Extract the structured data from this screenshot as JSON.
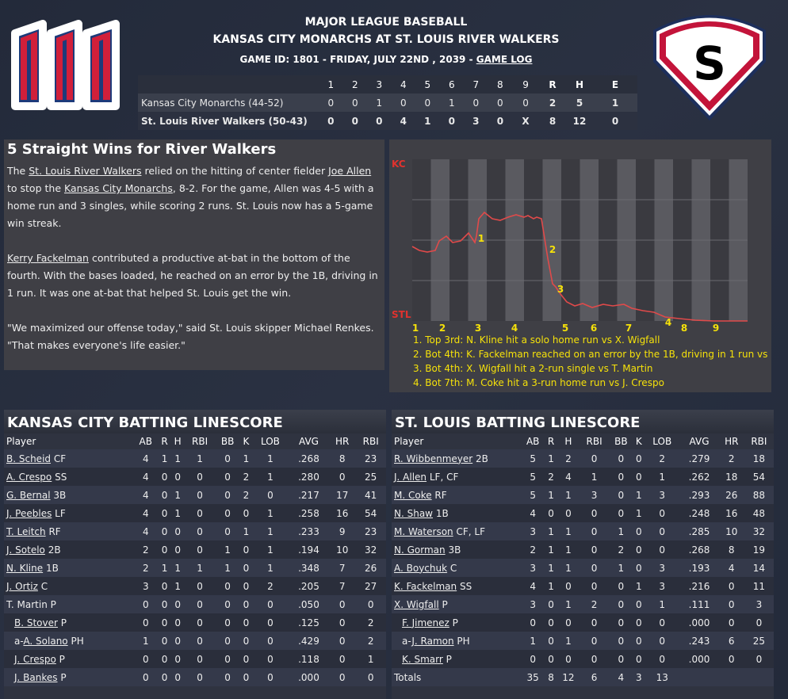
{
  "header": {
    "league": "MAJOR LEAGUE BASEBALL",
    "matchup": "KANSAS CITY MONARCHS AT ST. LOUIS RIVER WALKERS",
    "game_id_text": "GAME ID: 1801 - FRIDAY, JULY 22ND , 2039 - ",
    "game_log_link": "GAME LOG",
    "away_logo_letter": "M",
    "home_logo_letter": "S"
  },
  "colors": {
    "kc_red": "#d11f3a",
    "kc_navy": "#1d3a7a",
    "stl_red": "#c3143a",
    "wp_line": "#e04a4a",
    "legend": "#f5e10a"
  },
  "linescore": {
    "innings": [
      "1",
      "2",
      "3",
      "4",
      "5",
      "6",
      "7",
      "8",
      "9"
    ],
    "rhe": [
      "R",
      "H",
      "E"
    ],
    "away": {
      "team": "Kansas City Monarchs (44-52)",
      "innings": [
        "0",
        "0",
        "1",
        "0",
        "0",
        "1",
        "0",
        "0",
        "0"
      ],
      "r": "2",
      "h": "5",
      "e": "1"
    },
    "home": {
      "team": "St. Louis River Walkers (50-43)",
      "innings": [
        "0",
        "0",
        "0",
        "4",
        "1",
        "0",
        "3",
        "0",
        "X"
      ],
      "r": "8",
      "h": "12",
      "e": "0"
    }
  },
  "recap": {
    "title": "5 Straight Wins for River Walkers",
    "p1": {
      "a": "The ",
      "l1": "St. Louis River Walkers",
      "b": " relied on the hitting of center fielder ",
      "l2": "Joe Allen",
      "c": " to stop the ",
      "l3": "Kansas City Monarchs",
      "d": ", 8-2. For the game, Allen was 4-5 with a home run and 3 singles, while scoring 2 runs. St. Louis now has a 5-game win streak."
    },
    "p2": {
      "l1": "Kerry Fackelman",
      "a": " contributed a productive at-bat in the bottom of the fourth. With the bases loaded, he reached on an error by the 1B, driving in 1 run. It was one at-bat that helped St. Louis get the win."
    },
    "p3": "\"We maximized our offense today,\" said St. Louis skipper Michael Renkes. \"That makes everyone's life easier.\""
  },
  "winprob": {
    "top_label": "KC",
    "bottom_label": "STL",
    "innings": [
      "1",
      "2",
      "3",
      "4",
      "5",
      "6",
      "7",
      "8",
      "9"
    ],
    "markers": [
      "1",
      "2",
      "3",
      "4"
    ],
    "legend": [
      "1. Top 3rd: N. Kline hit a solo home run vs X. Wigfall",
      "2. Bot 4th: K. Fackelman reached on an error by the 1B, driving in 1 run vs",
      "3. Bot 4th: X. Wigfall hit a 2-run single vs T. Martin",
      "4. Bot 7th: M. Coke hit a 3-run home run vs J. Crespo"
    ]
  },
  "batting_headers": [
    "Player",
    "AB",
    "R",
    "H",
    "RBI",
    "BB",
    "K",
    "LOB",
    "AVG",
    "HR",
    "RBI"
  ],
  "kc_batting": {
    "title": "KANSAS CITY BATTING LINESCORE",
    "rows": [
      {
        "pre": "",
        "name": "B. Scheid",
        "pos": " CF",
        "stats": [
          "4",
          "1",
          "1",
          "1",
          "0",
          "1",
          "1",
          ".268",
          "8",
          "23"
        ]
      },
      {
        "pre": "",
        "name": "A. Crespo",
        "pos": " SS",
        "stats": [
          "4",
          "0",
          "0",
          "0",
          "0",
          "2",
          "1",
          ".280",
          "0",
          "25"
        ]
      },
      {
        "pre": "",
        "name": "G. Bernal",
        "pos": " 3B",
        "stats": [
          "4",
          "0",
          "1",
          "0",
          "0",
          "2",
          "0",
          ".217",
          "17",
          "41"
        ]
      },
      {
        "pre": "",
        "name": "J. Peebles",
        "pos": " LF",
        "stats": [
          "4",
          "0",
          "1",
          "0",
          "0",
          "0",
          "1",
          ".258",
          "16",
          "54"
        ]
      },
      {
        "pre": "",
        "name": "T. Leitch",
        "pos": " RF",
        "stats": [
          "4",
          "0",
          "0",
          "0",
          "0",
          "1",
          "1",
          ".233",
          "9",
          "23"
        ]
      },
      {
        "pre": "",
        "name": "J. Sotelo",
        "pos": " 2B",
        "stats": [
          "2",
          "0",
          "0",
          "0",
          "1",
          "0",
          "1",
          ".194",
          "10",
          "32"
        ]
      },
      {
        "pre": "",
        "name": "N. Kline",
        "pos": " 1B",
        "stats": [
          "2",
          "1",
          "1",
          "1",
          "1",
          "0",
          "1",
          ".348",
          "7",
          "26"
        ]
      },
      {
        "pre": "",
        "name": "J. Ortiz",
        "pos": " C",
        "stats": [
          "3",
          "0",
          "1",
          "0",
          "0",
          "0",
          "2",
          ".205",
          "7",
          "27"
        ]
      },
      {
        "pre": "",
        "name": "T. Martin",
        "pos": " P",
        "stats": [
          "0",
          "0",
          "0",
          "0",
          "0",
          "0",
          "0",
          ".050",
          "0",
          "0"
        ],
        "plain": true
      },
      {
        "pre": "",
        "name": "B. Stover",
        "pos": " P",
        "stats": [
          "0",
          "0",
          "0",
          "0",
          "0",
          "0",
          "0",
          ".125",
          "0",
          "2"
        ],
        "sub": true
      },
      {
        "pre": "a-",
        "name": "A. Solano",
        "pos": " PH",
        "stats": [
          "1",
          "0",
          "0",
          "0",
          "0",
          "0",
          "0",
          ".429",
          "0",
          "2"
        ],
        "sub": true
      },
      {
        "pre": "",
        "name": "J. Crespo",
        "pos": " P",
        "stats": [
          "0",
          "0",
          "0",
          "0",
          "0",
          "0",
          "0",
          ".118",
          "0",
          "1"
        ],
        "sub": true
      },
      {
        "pre": "",
        "name": "J. Bankes",
        "pos": " P",
        "stats": [
          "0",
          "0",
          "0",
          "0",
          "0",
          "0",
          "0",
          ".000",
          "0",
          "0"
        ],
        "sub": true
      }
    ]
  },
  "stl_batting": {
    "title": "ST. LOUIS BATTING LINESCORE",
    "rows": [
      {
        "pre": "",
        "name": "R. Wibbenmeyer",
        "pos": " 2B",
        "stats": [
          "5",
          "1",
          "2",
          "0",
          "0",
          "0",
          "2",
          ".279",
          "2",
          "18"
        ]
      },
      {
        "pre": "",
        "name": "J. Allen",
        "pos": " LF, CF",
        "stats": [
          "5",
          "2",
          "4",
          "1",
          "0",
          "0",
          "1",
          ".262",
          "18",
          "54"
        ]
      },
      {
        "pre": "",
        "name": "M. Coke",
        "pos": " RF",
        "stats": [
          "5",
          "1",
          "1",
          "3",
          "0",
          "1",
          "3",
          ".293",
          "26",
          "88"
        ]
      },
      {
        "pre": "",
        "name": "N. Shaw",
        "pos": " 1B",
        "stats": [
          "4",
          "0",
          "0",
          "0",
          "0",
          "1",
          "0",
          ".248",
          "16",
          "48"
        ]
      },
      {
        "pre": "",
        "name": "M. Waterson",
        "pos": " CF, LF",
        "stats": [
          "3",
          "1",
          "1",
          "0",
          "1",
          "0",
          "0",
          ".285",
          "10",
          "32"
        ]
      },
      {
        "pre": "",
        "name": "N. Gorman",
        "pos": " 3B",
        "stats": [
          "2",
          "1",
          "1",
          "0",
          "2",
          "0",
          "0",
          ".268",
          "8",
          "19"
        ]
      },
      {
        "pre": "",
        "name": "A. Boychuk",
        "pos": " C",
        "stats": [
          "3",
          "1",
          "1",
          "0",
          "1",
          "0",
          "3",
          ".193",
          "4",
          "14"
        ]
      },
      {
        "pre": "",
        "name": "K. Fackelman",
        "pos": " SS",
        "stats": [
          "4",
          "1",
          "0",
          "0",
          "0",
          "1",
          "3",
          ".216",
          "0",
          "11"
        ]
      },
      {
        "pre": "",
        "name": "X. Wigfall",
        "pos": " P",
        "stats": [
          "3",
          "0",
          "1",
          "2",
          "0",
          "0",
          "1",
          ".111",
          "0",
          "3"
        ]
      },
      {
        "pre": "",
        "name": "F. Jimenez",
        "pos": " P",
        "stats": [
          "0",
          "0",
          "0",
          "0",
          "0",
          "0",
          "0",
          ".000",
          "0",
          "0"
        ],
        "sub": true
      },
      {
        "pre": "a-",
        "name": "J. Ramon",
        "pos": " PH",
        "stats": [
          "1",
          "0",
          "1",
          "0",
          "0",
          "0",
          "0",
          ".243",
          "6",
          "25"
        ],
        "sub": true
      },
      {
        "pre": "",
        "name": "K. Smarr",
        "pos": " P",
        "stats": [
          "0",
          "0",
          "0",
          "0",
          "0",
          "0",
          "0",
          ".000",
          "0",
          "0"
        ],
        "sub": true
      },
      {
        "pre": "",
        "name": "Totals",
        "pos": "",
        "stats": [
          "35",
          "8",
          "12",
          "6",
          "4",
          "3",
          "13",
          "",
          "",
          ""
        ],
        "totals": true
      }
    ]
  }
}
